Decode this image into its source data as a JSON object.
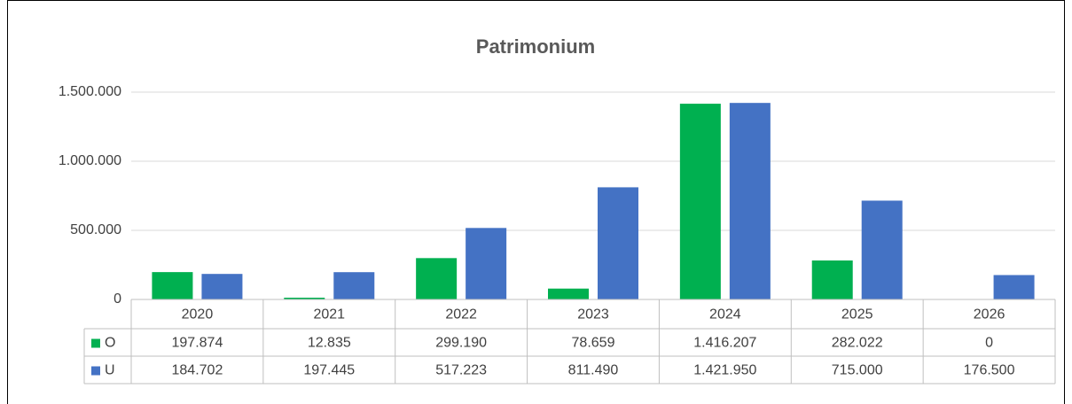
{
  "chart_data": {
    "type": "bar",
    "title": "Patrimonium",
    "categories": [
      "2020",
      "2021",
      "2022",
      "2023",
      "2024",
      "2025",
      "2026"
    ],
    "series": [
      {
        "name": "O",
        "color": "#00b050",
        "values": [
          197874,
          12835,
          299190,
          78659,
          1416207,
          282022,
          0
        ],
        "value_labels": [
          "197.874",
          "12.835",
          "299.190",
          "78.659",
          "1.416.207",
          "282.022",
          "0"
        ]
      },
      {
        "name": "U",
        "color": "#4472c4",
        "values": [
          184702,
          197445,
          517223,
          811490,
          1421950,
          715000,
          176500
        ],
        "value_labels": [
          "184.702",
          "197.445",
          "517.223",
          "811.490",
          "1.421.950",
          "715.000",
          "176.500"
        ]
      }
    ],
    "ylim": [
      0,
      1500000
    ],
    "yticks": [
      0,
      {
        "value": 500000,
        "label": "500.000"
      },
      {
        "value": 1000000,
        "label": "1.000.000"
      },
      {
        "value": 1500000,
        "label": "1.500.000"
      }
    ],
    "grid": true,
    "data_table": true
  }
}
